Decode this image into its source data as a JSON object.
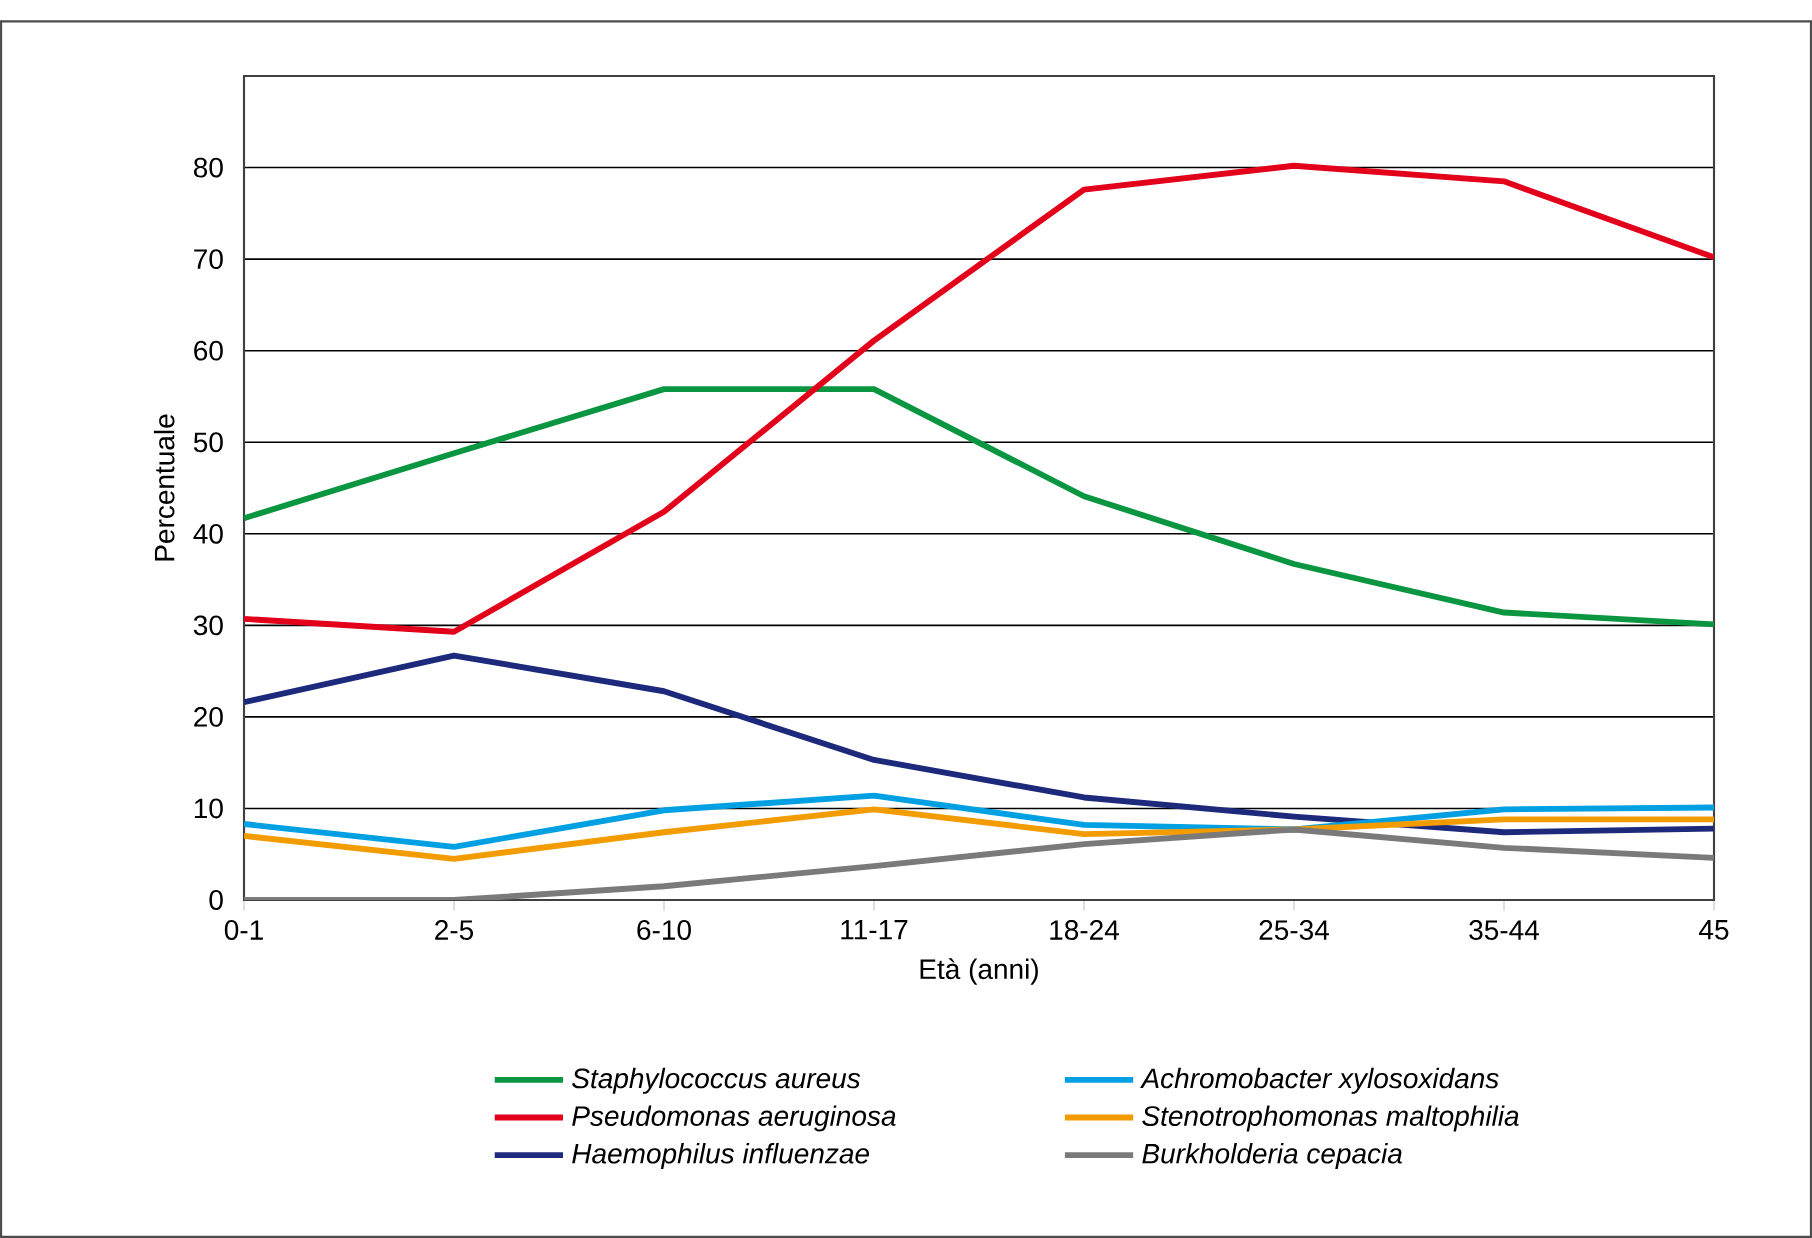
{
  "chart_data": {
    "type": "line",
    "xlabel": "Età (anni)",
    "ylabel": "Percentuale",
    "categories": [
      "0-1",
      "2-5",
      "6-10",
      "11-17",
      "18-24",
      "25-34",
      "35-44",
      "45"
    ],
    "series": [
      {
        "name": "Staphylococcus aureus",
        "color": "#0a9640",
        "values": [
          41.7,
          48.8,
          55.8,
          55.8,
          44.1,
          36.7,
          31.4,
          30.1
        ]
      },
      {
        "name": "Pseudomonas aeruginosa",
        "color": "#e2001a",
        "values": [
          30.7,
          29.3,
          42.4,
          61.1,
          77.6,
          80.2,
          78.5,
          70.2
        ]
      },
      {
        "name": "Haemophilus influenzae",
        "color": "#1d2a7c",
        "values": [
          21.6,
          26.7,
          22.8,
          15.3,
          11.2,
          9.1,
          7.4,
          7.8
        ]
      },
      {
        "name": "Achromobacter xylosoxidans",
        "color": "#00a0e3",
        "values": [
          8.3,
          5.8,
          9.8,
          11.4,
          8.2,
          7.7,
          9.9,
          10.1
        ]
      },
      {
        "name": "Stenotrophomonas maltophilia",
        "color": "#f39c00",
        "values": [
          7.0,
          4.5,
          7.4,
          9.9,
          7.2,
          7.7,
          8.8,
          8.8
        ]
      },
      {
        "name": "Burkholderia cepacia",
        "color": "#7a7a7a",
        "values": [
          0,
          0,
          1.5,
          3.7,
          6.1,
          7.7,
          5.7,
          4.6
        ]
      }
    ],
    "ylim": [
      0,
      90
    ],
    "yticks": [
      0,
      10,
      20,
      30,
      40,
      50,
      60,
      70,
      80
    ],
    "grid": "y",
    "legend": "bottom",
    "marker": "none",
    "line_style": "solid"
  }
}
